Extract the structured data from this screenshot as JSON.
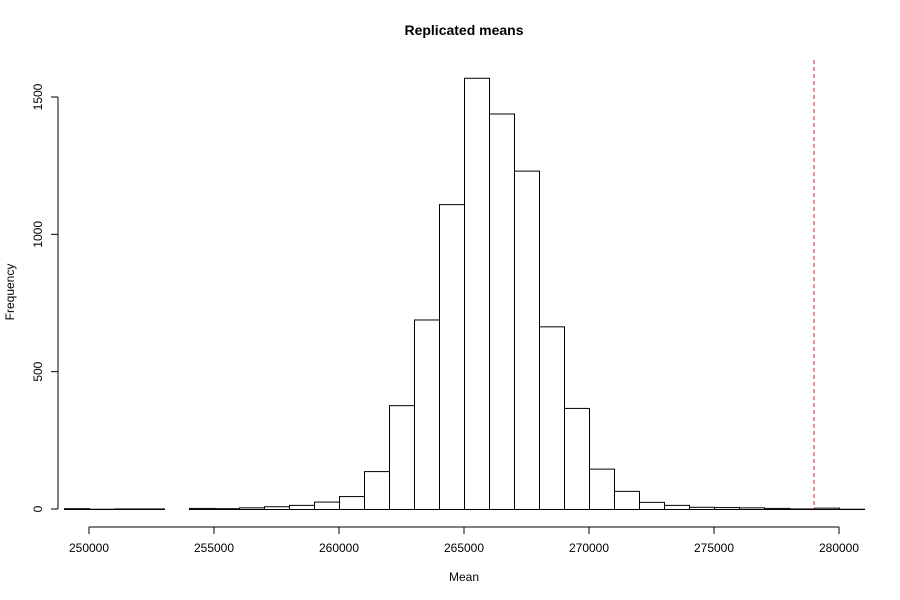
{
  "chart_data": {
    "type": "bar",
    "title": "Replicated means",
    "xlabel": "Mean",
    "ylabel": "Frequency",
    "bin_width": 1000,
    "bin_starts": [
      249000,
      250000,
      251000,
      252000,
      253000,
      254000,
      255000,
      256000,
      257000,
      258000,
      259000,
      260000,
      261000,
      262000,
      263000,
      264000,
      265000,
      266000,
      267000,
      268000,
      269000,
      270000,
      271000,
      272000,
      273000,
      274000,
      275000,
      276000,
      277000,
      278000,
      279000,
      280000
    ],
    "values": [
      3,
      1,
      2,
      2,
      0,
      4,
      3,
      6,
      10,
      15,
      27,
      47,
      138,
      378,
      690,
      1110,
      1570,
      1440,
      1232,
      665,
      368,
      147,
      66,
      26,
      15,
      8,
      7,
      6,
      4,
      2,
      5,
      1
    ],
    "xlim": [
      249000,
      281000
    ],
    "ylim": [
      0,
      1600
    ],
    "xticks": [
      250000,
      255000,
      260000,
      265000,
      270000,
      275000,
      280000
    ],
    "yticks": [
      0,
      500,
      1000,
      1500
    ],
    "reference_line": {
      "x": 279000,
      "color": "#d62728",
      "style": "dashed"
    }
  }
}
